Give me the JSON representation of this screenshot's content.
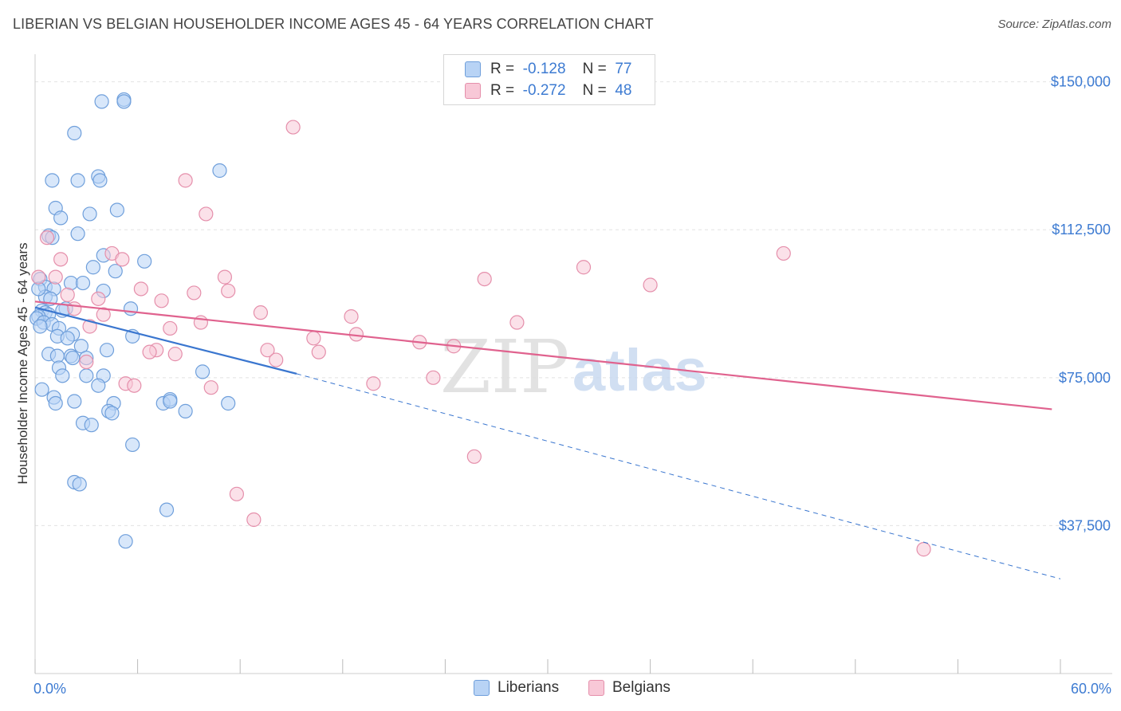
{
  "title": "LIBERIAN VS BELGIAN HOUSEHOLDER INCOME AGES 45 - 64 YEARS CORRELATION CHART",
  "source": "Source: ZipAtlas.com",
  "watermark": {
    "zip": "ZIP",
    "atlas": "atlas"
  },
  "legend": {
    "rows": [
      {
        "r_label": "R =",
        "r_value": "-0.128",
        "n_label": "N =",
        "n_value": "77"
      },
      {
        "r_label": "R =",
        "r_value": "-0.272",
        "n_label": "N =",
        "n_value": "48"
      }
    ]
  },
  "bottom_legend": [
    "Liberians",
    "Belgians"
  ],
  "colors": {
    "liberians_fill": "#b8d3f5",
    "liberians_stroke": "#6f9fdb",
    "liberians_line": "#3a76cf",
    "belgians_fill": "#f8c8d7",
    "belgians_stroke": "#e58fab",
    "belgians_line": "#e0628e",
    "axis_label": "#3d7bd2",
    "grid": "#e2e2e2"
  },
  "chart_data": {
    "type": "scatter",
    "title": "LIBERIAN VS BELGIAN HOUSEHOLDER INCOME AGES 45 - 64 YEARS CORRELATION CHART",
    "xlabel": "",
    "ylabel": "Householder Income Ages 45 - 64 years",
    "xlim": [
      0,
      60
    ],
    "ylim": [
      0,
      157000
    ],
    "x_tick_labels": [
      "0.0%",
      "60.0%"
    ],
    "x_tick_values": [
      0,
      60
    ],
    "x_minor_ticks": [
      0,
      6,
      12,
      18,
      24,
      30,
      36,
      42,
      48,
      54,
      60
    ],
    "y_ticks": [
      37500,
      75000,
      112500,
      150000
    ],
    "y_tick_labels": [
      "$37,500",
      "$75,000",
      "$112,500",
      "$150,000"
    ],
    "grid": true,
    "legend_position": "top-center",
    "series": [
      {
        "name": "Liberians",
        "r": -0.128,
        "n": 77,
        "trend": {
          "x0": 0,
          "y0": 92800,
          "x_solid_end": 15.3,
          "y_solid_end": 76000,
          "x1": 60,
          "y1": 24000
        },
        "points": [
          [
            3.9,
            145000
          ],
          [
            5.2,
            145500
          ],
          [
            5.2,
            145000
          ],
          [
            2.3,
            137000
          ],
          [
            10.8,
            127500
          ],
          [
            1.0,
            125000
          ],
          [
            2.5,
            125000
          ],
          [
            3.7,
            126000
          ],
          [
            3.8,
            125000
          ],
          [
            1.2,
            118000
          ],
          [
            4.8,
            117500
          ],
          [
            3.2,
            116500
          ],
          [
            1.5,
            115500
          ],
          [
            0.8,
            111000
          ],
          [
            2.5,
            111500
          ],
          [
            4.0,
            106000
          ],
          [
            6.4,
            104500
          ],
          [
            3.4,
            103000
          ],
          [
            4.7,
            102000
          ],
          [
            2.1,
            99000
          ],
          [
            2.8,
            99000
          ],
          [
            0.3,
            100000
          ],
          [
            0.6,
            98000
          ],
          [
            1.1,
            97500
          ],
          [
            4.0,
            97000
          ],
          [
            0.6,
            95500
          ],
          [
            0.9,
            95000
          ],
          [
            1.8,
            92500
          ],
          [
            5.6,
            92500
          ],
          [
            0.4,
            92000
          ],
          [
            0.6,
            91500
          ],
          [
            0.8,
            91000
          ],
          [
            0.2,
            90500
          ],
          [
            0.1,
            90000
          ],
          [
            0.5,
            89000
          ],
          [
            1.0,
            88500
          ],
          [
            0.3,
            88000
          ],
          [
            1.4,
            87500
          ],
          [
            2.2,
            86000
          ],
          [
            1.3,
            85500
          ],
          [
            1.9,
            85000
          ],
          [
            5.7,
            85500
          ],
          [
            2.7,
            83000
          ],
          [
            4.2,
            82000
          ],
          [
            0.8,
            81000
          ],
          [
            1.3,
            80500
          ],
          [
            2.1,
            80500
          ],
          [
            3.0,
            80000
          ],
          [
            1.4,
            77500
          ],
          [
            9.8,
            76500
          ],
          [
            1.6,
            75500
          ],
          [
            3.0,
            75500
          ],
          [
            4.0,
            75500
          ],
          [
            3.7,
            73000
          ],
          [
            0.4,
            72000
          ],
          [
            1.1,
            70000
          ],
          [
            2.3,
            69000
          ],
          [
            1.2,
            68500
          ],
          [
            4.6,
            68500
          ],
          [
            7.5,
            68500
          ],
          [
            7.9,
            69500
          ],
          [
            4.3,
            66500
          ],
          [
            4.5,
            66000
          ],
          [
            8.8,
            66500
          ],
          [
            11.3,
            68500
          ],
          [
            2.8,
            63500
          ],
          [
            3.3,
            63000
          ],
          [
            5.7,
            58000
          ],
          [
            2.3,
            48500
          ],
          [
            2.6,
            48000
          ],
          [
            7.7,
            41500
          ],
          [
            5.3,
            33500
          ],
          [
            1.0,
            110500
          ],
          [
            0.2,
            97500
          ],
          [
            1.6,
            92000
          ],
          [
            2.2,
            80000
          ],
          [
            7.9,
            69000
          ]
        ]
      },
      {
        "name": "Belgians",
        "r": -0.272,
        "n": 48,
        "trend": {
          "x0": 0,
          "y0": 94300,
          "x1": 59.5,
          "y1": 67000
        },
        "points": [
          [
            15.1,
            138500
          ],
          [
            8.8,
            125000
          ],
          [
            10.0,
            116500
          ],
          [
            0.7,
            110500
          ],
          [
            1.5,
            105000
          ],
          [
            4.5,
            106500
          ],
          [
            5.1,
            105000
          ],
          [
            43.8,
            106500
          ],
          [
            0.2,
            100500
          ],
          [
            1.2,
            100500
          ],
          [
            11.1,
            100500
          ],
          [
            26.3,
            100000
          ],
          [
            32.1,
            103000
          ],
          [
            36.0,
            98500
          ],
          [
            6.2,
            97500
          ],
          [
            9.3,
            96500
          ],
          [
            11.3,
            97000
          ],
          [
            1.9,
            96000
          ],
          [
            3.7,
            95000
          ],
          [
            7.4,
            94500
          ],
          [
            2.3,
            92500
          ],
          [
            13.2,
            91500
          ],
          [
            4.0,
            91000
          ],
          [
            18.5,
            90500
          ],
          [
            9.7,
            89000
          ],
          [
            28.2,
            89000
          ],
          [
            3.2,
            88000
          ],
          [
            7.9,
            87500
          ],
          [
            18.8,
            86000
          ],
          [
            16.3,
            85000
          ],
          [
            22.5,
            84000
          ],
          [
            24.5,
            83000
          ],
          [
            7.1,
            82000
          ],
          [
            6.7,
            81500
          ],
          [
            13.6,
            82000
          ],
          [
            16.6,
            81500
          ],
          [
            8.2,
            81000
          ],
          [
            3.0,
            79000
          ],
          [
            14.1,
            79500
          ],
          [
            5.3,
            73500
          ],
          [
            5.8,
            73000
          ],
          [
            19.8,
            73500
          ],
          [
            23.3,
            75000
          ],
          [
            10.3,
            72500
          ],
          [
            25.7,
            55000
          ],
          [
            11.8,
            45500
          ],
          [
            12.8,
            39000
          ],
          [
            52.0,
            31500
          ]
        ]
      }
    ]
  }
}
